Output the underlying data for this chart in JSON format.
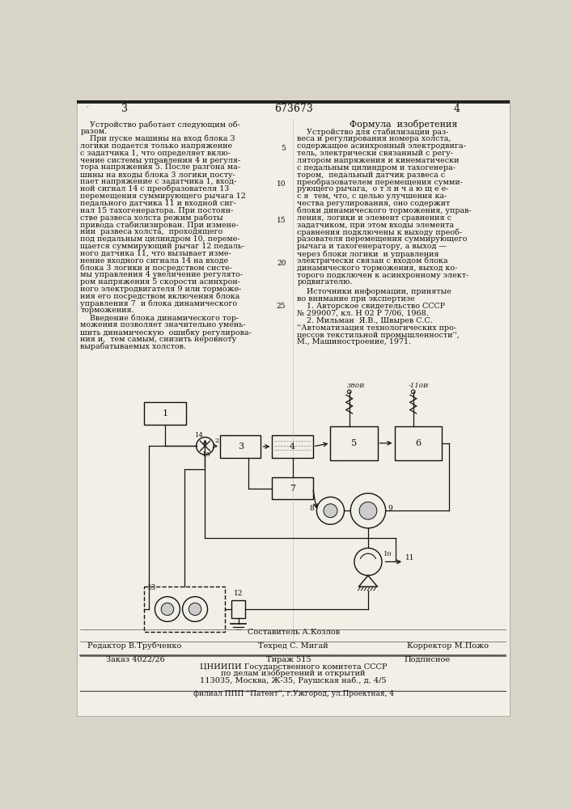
{
  "bg_color": "#d8d4c8",
  "page_color": "#f2efe6",
  "title_number": "673673",
  "footer_composer": "Составитель А.Козлов",
  "footer_editor": "Редактор В.Трубченко",
  "footer_tech": "Техред С. Мигай",
  "footer_corrector": "Корректор М.Пожо",
  "footer_order": "Заказ 4022/26",
  "footer_circ": "Тираж 515",
  "footer_signed": "Подписное",
  "footer_org": "ЦНИИПИ Государственного комитета СССР",
  "footer_dept": "по делам изобретений и открытий",
  "footer_addr": "113035, Москва, Ж-35, Раушская наб., д. 4/5",
  "footer_branch": "филиал ППП ''Патент'', г.Ужгород, ул.Проектная, 4",
  "left_col_lines": [
    "    Устройство работает следующим об-",
    "разом.",
    "    При пуске машины на вход блока 3",
    "логики подается только напряжение",
    "с задатчика 1, что определяет вклю-",
    "чение системы управления 4 и регуля-",
    "тора напряжения 5. После разгона ма-",
    "шины на входы блока 3 логики посту-",
    "пает напряжение с задатчика 1, вход-",
    "ной сигнал 14 с преобразователя 13",
    "перемещения суммирующего рычага 12",
    "педального датчика 11 и входной сиг-",
    "нал 15 тахогенератора. При постоян-",
    "стве развеса холста режим работы",
    "привода стабилизирован. При измене-",
    "нии  развеса холста,  проходящего",
    "под педальным цилиндром 10, переме-",
    "щается суммирующий рычаг 12 педаль-",
    "ного датчика 11, что вызывает изме-",
    "нение входного сигнала 14 на входе",
    "блока 3 логики и посредством систе-",
    "мы управления 4 увеличение регулято-",
    "ром напряжения 5 скорости асинхрон-",
    "ного электродвигателя 9 или торможе-",
    "ния его посредством включения блока",
    "управления 7  и блока динамического",
    "торможения.",
    "    Введение блока динамического тор-",
    "можения позволяет значительно умень-",
    "шить динамическую  ошибку регулирова-",
    "ния и,  тем самым, снизить неровноту",
    "вырабатываемых холстов."
  ],
  "right_col_lines": [
    "    Устройство для стабилизации раз-",
    "веса и регулирования номера холста,",
    "содержащее асинхронный электродвига-",
    "тель, электрически связанный с регу-",
    "лятором напряжения и кинематически",
    "с педальным цилиндром и тахогенера-",
    "тором,  педальный датчик развеса с",
    "преобразователем перемещения сумми-",
    "рующего рычага,  о т л и ч а ю щ е е-",
    "с я  тем, что, с целью улучшения ка-",
    "чества регулирования, оно содержит",
    "блоки динамического торможения, управ-",
    "ления, логики и элемент сравнения с",
    "задатчиком, при этом входы элемента",
    "сравнения подключены к выходу преоб-",
    "разователя перемещения суммирующего",
    "рычага и тахогенератору, а выход —",
    "через блоки логики  и управления",
    "электрически связан с входом блока",
    "динамического торможения, выход ко-",
    "торого подключен к асинхронному элект-",
    "родвигателю."
  ],
  "sources_lines": [
    "    Источники информации, принятые",
    "во внимание при экспертизе",
    "    1. Авторское свидетельство СССР",
    "№ 299007, кл. Н 02 Р 7/06, 1968.",
    "    2. Мильман  Я.В., Швырев С.С.",
    "''Автоматизация технологических про-",
    "цессов текстильной промышленности'',",
    "М., Машиностроение, 1971."
  ],
  "line_numbers": [
    5,
    10,
    15,
    20,
    25
  ],
  "pwr1_label": "380В",
  "pwr2_label": "-110В"
}
